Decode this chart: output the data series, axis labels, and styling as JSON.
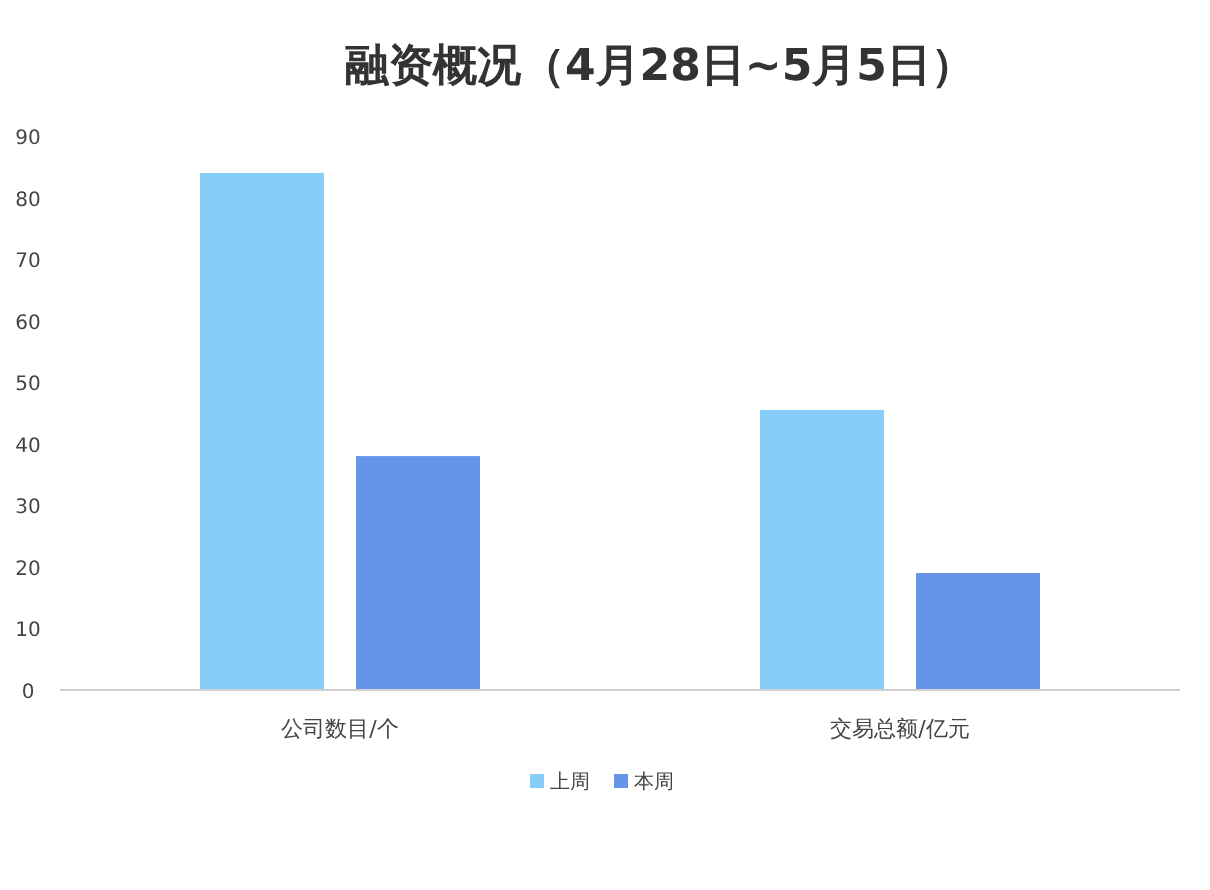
{
  "chart_data": {
    "type": "bar",
    "title": "融资概况（4月28日~5月5日）",
    "categories": [
      "公司数目/个",
      "交易总额/亿元"
    ],
    "series": [
      {
        "name": "上周",
        "color": "#87cdf9",
        "values": [
          84,
          45.5
        ]
      },
      {
        "name": "本周",
        "color": "#6495e8",
        "values": [
          38,
          19
        ]
      }
    ],
    "ylim": [
      0,
      90
    ],
    "yticks": [
      0,
      10,
      20,
      30,
      40,
      50,
      60,
      70,
      80,
      90
    ],
    "grid": false,
    "legend": "bottom"
  }
}
